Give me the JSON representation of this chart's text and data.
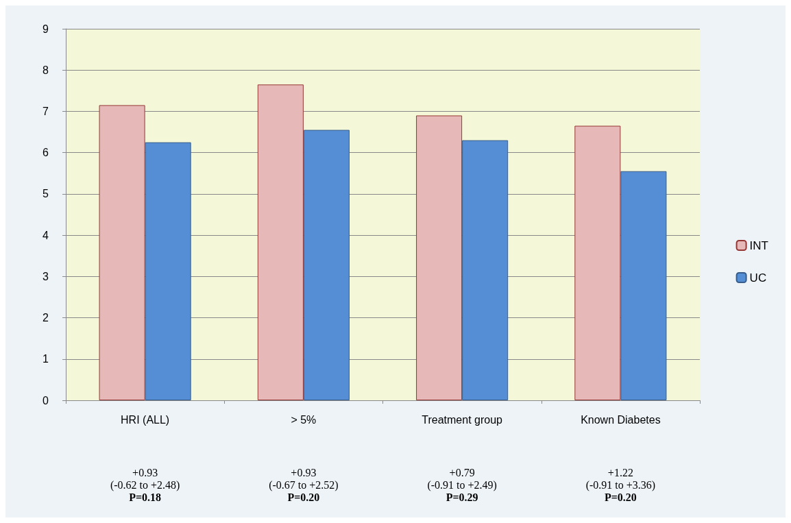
{
  "chart_data": {
    "type": "bar",
    "categories": [
      "HRI (ALL)",
      "> 5%",
      "Treatment group",
      "Known Diabetes"
    ],
    "series": [
      {
        "name": "INT",
        "color": "#e6b8b7",
        "values": [
          7.15,
          7.65,
          6.9,
          6.65
        ]
      },
      {
        "name": "UC",
        "color": "#558ed5",
        "values": [
          6.25,
          6.55,
          6.3,
          5.55
        ]
      }
    ],
    "ylim": [
      0,
      9
    ],
    "yticks": [
      0,
      1,
      2,
      3,
      4,
      5,
      6,
      7,
      8,
      9
    ],
    "grid": "y",
    "legend": "right",
    "annotations": [
      "+0.93\n(-0.62 to +2.48)\nP=0.18",
      "+0.93\n(-0.67 to +2.52)\nP=0.20",
      "+0.79\n(-0.91 to +2.49)\nP=0.29",
      "+1.22\n(-0.91 to +3.36)\nP=0.20"
    ]
  }
}
